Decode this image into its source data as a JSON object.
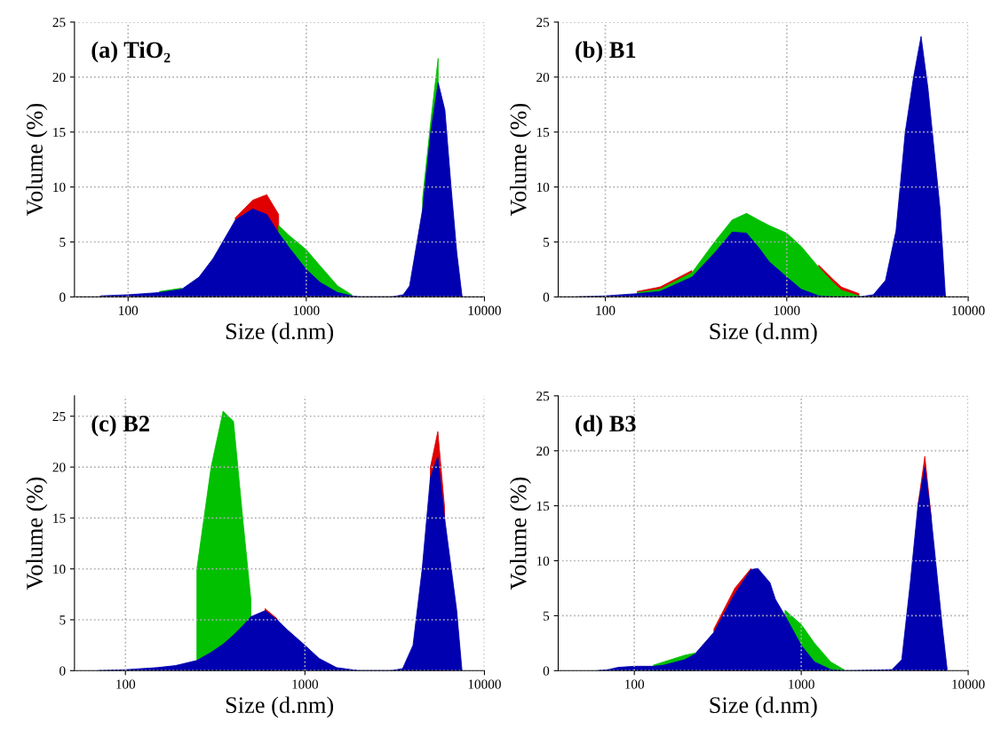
{
  "chart_data": [
    {
      "type": "area",
      "title": "(a) TiO₂",
      "xlabel": "Size (d.nm)",
      "ylabel": "Volume (%)",
      "log": "x",
      "grid": true,
      "xlim": [
        50,
        10000
      ],
      "xticks": [
        100,
        1000,
        10000
      ],
      "ylim": [
        0,
        25
      ],
      "yticks": [
        0,
        5,
        10,
        15,
        20,
        25
      ],
      "x": [
        70,
        100,
        150,
        200,
        250,
        300,
        400,
        500,
        600,
        700,
        800,
        1000,
        1200,
        1500,
        1800,
        2000,
        3000,
        3500,
        3800,
        4500,
        5000,
        5500,
        6000,
        6500,
        7000,
        7500
      ],
      "series": [
        {
          "color": "#e00000",
          "values": [
            null,
            null,
            null,
            null,
            null,
            null,
            7.2,
            8.8,
            9.3,
            7.5,
            null,
            null,
            null,
            null,
            null,
            null,
            null,
            null,
            null,
            null,
            null,
            null,
            null,
            null,
            null,
            null
          ]
        },
        {
          "color": "#00c000",
          "values": [
            null,
            null,
            0.5,
            0.8,
            null,
            null,
            null,
            null,
            null,
            6.5,
            5.6,
            4.3,
            2.8,
            1.0,
            0.2,
            null,
            null,
            null,
            null,
            9,
            16,
            21.7,
            null,
            null,
            null,
            null
          ]
        },
        {
          "color": "#0000b0",
          "values": [
            0.1,
            0.2,
            0.4,
            0.7,
            1.8,
            3.5,
            7.0,
            8.0,
            7.5,
            5.8,
            4.5,
            2.5,
            1.3,
            0.4,
            0.1,
            0,
            0,
            0.2,
            1.0,
            8,
            15,
            19.5,
            17,
            10,
            4,
            0
          ]
        }
      ]
    },
    {
      "type": "area",
      "title": "(b) B1",
      "xlabel": "Size (d.nm)",
      "ylabel": "Volume (%)",
      "log": "x",
      "grid": true,
      "xlim": [
        55,
        10000
      ],
      "xticks": [
        100,
        1000,
        10000
      ],
      "ylim": [
        0,
        25
      ],
      "yticks": [
        0,
        5,
        10,
        15,
        20,
        25
      ],
      "x": [
        70,
        100,
        150,
        200,
        300,
        400,
        500,
        600,
        700,
        800,
        1000,
        1200,
        1500,
        1800,
        2000,
        2500,
        3000,
        3500,
        4000,
        4500,
        5000,
        5500,
        6000,
        7000,
        7500
      ],
      "series": [
        {
          "color": "#e00000",
          "values": [
            null,
            null,
            0.5,
            0.9,
            2.4,
            null,
            null,
            null,
            null,
            null,
            null,
            null,
            2.9,
            1.6,
            0.9,
            0.3,
            null,
            null,
            null,
            null,
            null,
            null,
            null,
            null,
            null
          ]
        },
        {
          "color": "#00c000",
          "values": [
            null,
            null,
            0.4,
            0.7,
            2.2,
            5.0,
            7.0,
            7.6,
            7.0,
            6.5,
            5.8,
            4.6,
            2.7,
            1.3,
            0.6,
            0.1,
            null,
            null,
            null,
            null,
            null,
            null,
            null,
            null,
            null
          ]
        },
        {
          "color": "#0000b0",
          "values": [
            0,
            0.1,
            0.3,
            0.5,
            1.8,
            4.0,
            5.9,
            5.8,
            4.5,
            3.2,
            1.8,
            0.7,
            0.1,
            0,
            0,
            0,
            0.2,
            1.5,
            6,
            15,
            20,
            23.7,
            19,
            8,
            0
          ]
        }
      ]
    },
    {
      "type": "area",
      "title": "(c) B2",
      "xlabel": "Size (d.nm)",
      "ylabel": "Volume (%)",
      "log": "x",
      "grid": true,
      "xlim": [
        52,
        10000
      ],
      "xticks": [
        100,
        1000,
        10000
      ],
      "ylim": [
        0,
        27
      ],
      "yticks": [
        0,
        5,
        10,
        15,
        20,
        25
      ],
      "x": [
        70,
        100,
        150,
        190,
        250,
        300,
        350,
        400,
        450,
        500,
        600,
        700,
        800,
        1000,
        1200,
        1500,
        2000,
        3000,
        3500,
        4000,
        4500,
        5000,
        5500,
        6000,
        7000,
        7500
      ],
      "series": [
        {
          "color": "#e00000",
          "values": [
            null,
            null,
            null,
            null,
            null,
            null,
            null,
            null,
            null,
            null,
            6.1,
            5.1,
            null,
            null,
            null,
            null,
            null,
            null,
            null,
            null,
            null,
            20,
            23.5,
            16,
            null,
            null
          ]
        },
        {
          "color": "#00c000",
          "values": [
            null,
            null,
            null,
            null,
            10,
            20,
            25.5,
            24.5,
            15,
            7,
            null,
            null,
            null,
            null,
            null,
            null,
            null,
            null,
            null,
            null,
            null,
            null,
            null,
            null,
            null,
            null
          ]
        },
        {
          "color": "#0000b0",
          "values": [
            0,
            0.1,
            0.3,
            0.5,
            1.0,
            1.8,
            2.6,
            3.5,
            4.4,
            5.3,
            5.9,
            5.0,
            4.0,
            2.5,
            1.2,
            0.3,
            0,
            0,
            0.2,
            2.5,
            10,
            19,
            21,
            15,
            6,
            0
          ]
        }
      ]
    },
    {
      "type": "area",
      "title": "(d) B3",
      "xlabel": "Size (d.nm)",
      "ylabel": "Volume (%)",
      "log": "x",
      "grid": true,
      "xlim": [
        35,
        10000
      ],
      "xticks": [
        100,
        1000,
        10000
      ],
      "ylim": [
        0,
        25
      ],
      "yticks": [
        0,
        5,
        10,
        15,
        20,
        25
      ],
      "x": [
        60,
        70,
        80,
        100,
        130,
        150,
        200,
        230,
        300,
        400,
        500,
        550,
        650,
        700,
        800,
        1000,
        1200,
        1500,
        1800,
        2000,
        3500,
        4000,
        4500,
        5000,
        5500,
        6000,
        7000,
        7500
      ],
      "series": [
        {
          "color": "#e00000",
          "values": [
            null,
            null,
            null,
            null,
            null,
            null,
            null,
            null,
            3.8,
            7.5,
            9.3,
            null,
            null,
            null,
            null,
            null,
            null,
            null,
            null,
            null,
            null,
            null,
            null,
            15,
            19.5,
            14,
            null,
            null
          ]
        },
        {
          "color": "#00c000",
          "values": [
            null,
            null,
            null,
            null,
            0.5,
            0.8,
            1.4,
            1.6,
            null,
            null,
            null,
            null,
            null,
            null,
            5.5,
            4.2,
            2.5,
            0.8,
            0.1,
            null,
            null,
            null,
            null,
            null,
            null,
            null,
            null,
            null
          ]
        },
        {
          "color": "#0000b0",
          "values": [
            0,
            0.1,
            0.3,
            0.4,
            0.4,
            0.5,
            1.0,
            1.5,
            3.5,
            7.0,
            9.2,
            9.3,
            8.0,
            6.5,
            5.0,
            2.3,
            0.8,
            0.1,
            0,
            0,
            0.1,
            1.0,
            8,
            15,
            18.5,
            14,
            4,
            0
          ]
        }
      ]
    }
  ]
}
